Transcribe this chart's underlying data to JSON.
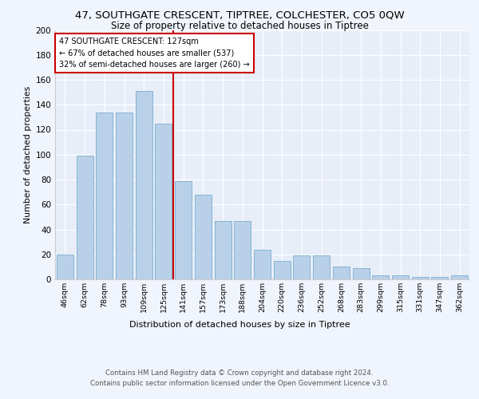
{
  "title1": "47, SOUTHGATE CRESCENT, TIPTREE, COLCHESTER, CO5 0QW",
  "title2": "Size of property relative to detached houses in Tiptree",
  "xlabel": "Distribution of detached houses by size in Tiptree",
  "ylabel": "Number of detached properties",
  "categories": [
    "46sqm",
    "62sqm",
    "78sqm",
    "93sqm",
    "109sqm",
    "125sqm",
    "141sqm",
    "157sqm",
    "173sqm",
    "188sqm",
    "204sqm",
    "220sqm",
    "236sqm",
    "252sqm",
    "268sqm",
    "283sqm",
    "299sqm",
    "315sqm",
    "331sqm",
    "347sqm",
    "362sqm"
  ],
  "values": [
    20,
    99,
    134,
    134,
    151,
    125,
    79,
    68,
    47,
    47,
    24,
    15,
    19,
    19,
    10,
    9,
    3,
    3,
    2,
    2,
    3
  ],
  "bar_color": "#b8d0e8",
  "bar_edge_color": "#7aaed0",
  "vline_x": 5.5,
  "ylim": [
    0,
    200
  ],
  "yticks": [
    0,
    20,
    40,
    60,
    80,
    100,
    120,
    140,
    160,
    180,
    200
  ],
  "annotation_line1": "47 SOUTHGATE CRESCENT: 127sqm",
  "annotation_line2": "← 67% of detached houses are smaller (537)",
  "annotation_line3": "32% of semi-detached houses are larger (260) →",
  "vline_color": "#cc0000",
  "annotation_box_color": "#ffffff",
  "annotation_box_edge": "#cc0000",
  "footer_line1": "Contains HM Land Registry data © Crown copyright and database right 2024.",
  "footer_line2": "Contains public sector information licensed under the Open Government Licence v3.0.",
  "fig_bg_color": "#f0f4fc",
  "plot_bg_color": "#e8eef8"
}
